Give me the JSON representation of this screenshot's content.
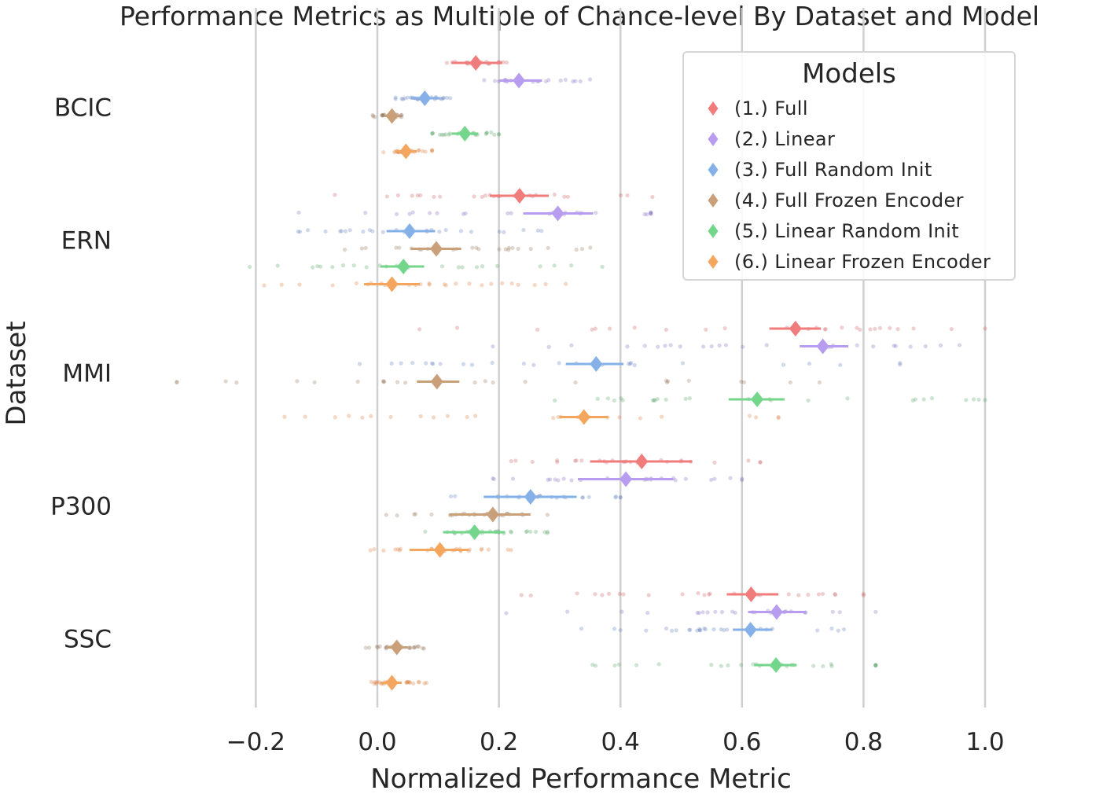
{
  "chart_data": {
    "type": "scatter",
    "title": "Performance Metrics as Multiple of Chance-level By Dataset and Model",
    "xlabel": "Normalized Performance Metric",
    "ylabel": "Dataset",
    "xlim": [
      -0.33,
      1.0
    ],
    "x_ticks": [
      "−0.2",
      "0.0",
      "0.2",
      "0.4",
      "0.6",
      "0.8",
      "1.0"
    ],
    "x_tick_values": [
      -0.2,
      0.0,
      0.2,
      0.4,
      0.6,
      0.8,
      1.0
    ],
    "grid": "vertical",
    "legend_position": "top-right",
    "legend_title": "Models",
    "categories": [
      "BCIC",
      "ERN",
      "MMI",
      "P300",
      "SSC"
    ],
    "series": [
      {
        "name": "(1.) Full",
        "color": "#f07c7c",
        "dot_color": "#c9545a",
        "mean": [
          0.162,
          0.234,
          0.688,
          0.435,
          0.615
        ],
        "ci": [
          [
            0.122,
            0.205
          ],
          [
            0.185,
            0.282
          ],
          [
            0.645,
            0.73
          ],
          [
            0.35,
            0.518
          ],
          [
            0.575,
            0.66
          ]
        ],
        "spread": [
          [
            0.09,
            0.22
          ],
          [
            -0.07,
            0.46
          ],
          [
            0.0,
            1.0
          ],
          [
            0.2,
            0.63
          ],
          [
            0.19,
            0.8
          ]
        ]
      },
      {
        "name": "(2.) Linear",
        "color": "#b79cf0",
        "dot_color": "#7b62b8",
        "mean": [
          0.233,
          0.297,
          0.733,
          0.409,
          0.657
        ],
        "ci": [
          [
            0.2,
            0.271
          ],
          [
            0.24,
            0.355
          ],
          [
            0.695,
            0.775
          ],
          [
            0.33,
            0.487
          ],
          [
            0.61,
            0.705
          ]
        ],
        "spread": [
          [
            0.15,
            0.35
          ],
          [
            -0.17,
            0.45
          ],
          [
            0.19,
            1.0
          ],
          [
            0.19,
            0.6
          ],
          [
            0.19,
            0.82
          ]
        ]
      },
      {
        "name": "(3.) Full Random Init",
        "color": "#85b0e8",
        "dot_color": "#5577b8",
        "mean": [
          0.078,
          0.053,
          0.36,
          0.252,
          0.614
        ],
        "ci": [
          [
            0.055,
            0.103
          ],
          [
            0.015,
            0.095
          ],
          [
            0.31,
            0.405
          ],
          [
            0.175,
            0.328
          ],
          [
            0.585,
            0.65
          ]
        ],
        "spread": [
          [
            0.03,
            0.12
          ],
          [
            -0.13,
            0.27
          ],
          [
            -0.19,
            0.86
          ],
          [
            0.08,
            0.4
          ],
          [
            0.31,
            0.77
          ]
        ]
      },
      {
        "name": "(4.) Full Frozen Encoder",
        "color": "#c9a07a",
        "dot_color": "#8b6a4f",
        "mean": [
          0.024,
          0.097,
          0.098,
          0.19,
          0.032
        ],
        "ci": [
          [
            0.012,
            0.037
          ],
          [
            0.055,
            0.138
          ],
          [
            0.065,
            0.135
          ],
          [
            0.118,
            0.252
          ],
          [
            0.015,
            0.05
          ]
        ],
        "spread": [
          [
            -0.01,
            0.04
          ],
          [
            -0.07,
            0.45
          ],
          [
            -0.33,
            0.76
          ],
          [
            0.0,
            0.28
          ],
          [
            -0.02,
            0.1
          ]
        ]
      },
      {
        "name": "(5.) Linear Random Init",
        "color": "#73d68a",
        "dot_color": "#4a9e5c",
        "mean": [
          0.144,
          0.043,
          0.625,
          0.16,
          0.656
        ],
        "ci": [
          [
            0.122,
            0.166
          ],
          [
            0.005,
            0.077
          ],
          [
            0.578,
            0.67
          ],
          [
            0.108,
            0.21
          ],
          [
            0.62,
            0.69
          ]
        ],
        "spread": [
          [
            0.09,
            0.2
          ],
          [
            -0.21,
            0.37
          ],
          [
            -0.05,
            1.0
          ],
          [
            0.04,
            0.28
          ],
          [
            0.19,
            0.82
          ]
        ]
      },
      {
        "name": "(6.) Linear Frozen Encoder",
        "color": "#f4a55e",
        "dot_color": "#d9732e",
        "mean": [
          0.047,
          0.024,
          0.34,
          0.103,
          0.024
        ],
        "ci": [
          [
            0.03,
            0.065
          ],
          [
            -0.022,
            0.07
          ],
          [
            0.3,
            0.38
          ],
          [
            0.053,
            0.15
          ],
          [
            0.005,
            0.04
          ]
        ],
        "spread": [
          [
            0.01,
            0.09
          ],
          [
            -0.3,
            0.31
          ],
          [
            -0.29,
            0.66
          ],
          [
            -0.03,
            0.22
          ],
          [
            -0.01,
            0.09
          ]
        ]
      }
    ]
  }
}
